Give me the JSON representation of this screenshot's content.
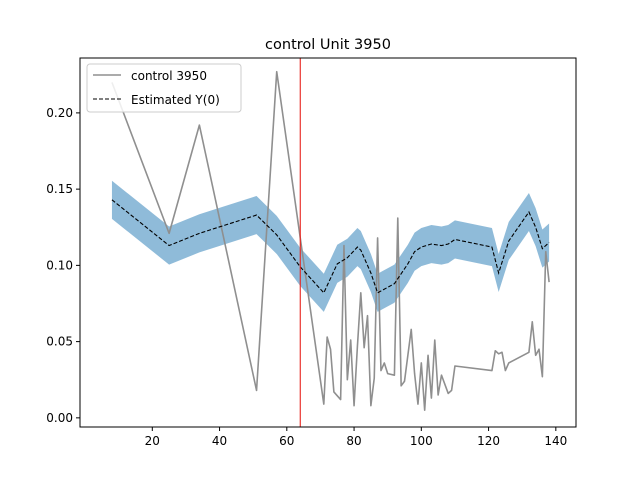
{
  "chart_data": {
    "type": "line",
    "title": "control Unit 3950",
    "xlabel": "",
    "ylabel": "",
    "xlim": [
      -1.5,
      146
    ],
    "ylim": [
      -0.006,
      0.236
    ],
    "xticks": [
      20,
      40,
      60,
      80,
      100,
      120,
      140
    ],
    "xtick_labels": [
      "20",
      "40",
      "60",
      "80",
      "100",
      "120",
      "140"
    ],
    "yticks": [
      0.0,
      0.05,
      0.1,
      0.15,
      0.2
    ],
    "ytick_labels": [
      "0.00",
      "0.05",
      "0.10",
      "0.15",
      "0.20"
    ],
    "grid": false,
    "legend_position": "upper-left",
    "vline": {
      "x": 64,
      "color": "#e8211b"
    },
    "series": [
      {
        "name": "control 3950",
        "style": "solid",
        "color": "#8f8f8f",
        "points": [
          [
            8,
            0.22
          ],
          [
            25,
            0.121
          ],
          [
            34,
            0.192
          ],
          [
            51,
            0.018
          ],
          [
            57,
            0.227
          ],
          [
            71,
            0.009
          ],
          [
            72,
            0.053
          ],
          [
            73,
            0.045
          ],
          [
            74,
            0.017
          ],
          [
            76,
            0.012
          ],
          [
            77,
            0.113
          ],
          [
            78,
            0.025
          ],
          [
            79,
            0.051
          ],
          [
            80,
            0.008
          ],
          [
            81,
            0.047
          ],
          [
            82,
            0.082
          ],
          [
            83,
            0.046
          ],
          [
            84,
            0.067
          ],
          [
            85,
            0.008
          ],
          [
            86,
            0.026
          ],
          [
            87,
            0.118
          ],
          [
            88,
            0.031
          ],
          [
            89,
            0.036
          ],
          [
            90,
            0.029
          ],
          [
            92,
            0.028
          ],
          [
            93,
            0.131
          ],
          [
            94,
            0.021
          ],
          [
            95,
            0.024
          ],
          [
            96,
            0.041
          ],
          [
            97,
            0.058
          ],
          [
            98,
            0.029
          ],
          [
            99,
            0.009
          ],
          [
            100,
            0.036
          ],
          [
            101,
            0.005
          ],
          [
            102,
            0.041
          ],
          [
            103,
            0.013
          ],
          [
            104,
            0.051
          ],
          [
            105,
            0.015
          ],
          [
            106,
            0.028
          ],
          [
            108,
            0.016
          ],
          [
            109,
            0.018
          ],
          [
            110,
            0.034
          ],
          [
            121,
            0.031
          ],
          [
            122,
            0.044
          ],
          [
            123,
            0.042
          ],
          [
            124,
            0.043
          ],
          [
            125,
            0.031
          ],
          [
            126,
            0.036
          ],
          [
            132,
            0.043
          ],
          [
            133,
            0.063
          ],
          [
            134,
            0.041
          ],
          [
            135,
            0.045
          ],
          [
            136,
            0.027
          ],
          [
            137,
            0.109
          ],
          [
            138,
            0.089
          ]
        ]
      },
      {
        "name": "Estimated Y(0)",
        "style": "dashed",
        "color": "#000000",
        "points": [
          [
            8,
            0.143
          ],
          [
            25,
            0.113
          ],
          [
            34,
            0.121
          ],
          [
            51,
            0.133
          ],
          [
            57,
            0.12
          ],
          [
            64,
            0.099
          ],
          [
            71,
            0.082
          ],
          [
            75,
            0.101
          ],
          [
            78,
            0.105
          ],
          [
            81,
            0.112
          ],
          [
            82,
            0.11
          ],
          [
            85,
            0.095
          ],
          [
            87,
            0.082
          ],
          [
            92,
            0.088
          ],
          [
            96,
            0.101
          ],
          [
            98,
            0.109
          ],
          [
            100,
            0.112
          ],
          [
            103,
            0.114
          ],
          [
            106,
            0.113
          ],
          [
            108,
            0.114
          ],
          [
            110,
            0.117
          ],
          [
            121,
            0.112
          ],
          [
            123,
            0.095
          ],
          [
            126,
            0.116
          ],
          [
            132,
            0.135
          ],
          [
            134,
            0.125
          ],
          [
            136,
            0.111
          ],
          [
            138,
            0.115
          ]
        ]
      }
    ],
    "band": {
      "color": "#1f77b4",
      "opacity": 0.5,
      "halfwidth": 0.0125
    },
    "legend": [
      {
        "label": "control 3950",
        "style": "solid",
        "color": "#8f8f8f"
      },
      {
        "label": "Estimated Y(0)",
        "style": "dashed",
        "color": "#000000"
      }
    ]
  }
}
